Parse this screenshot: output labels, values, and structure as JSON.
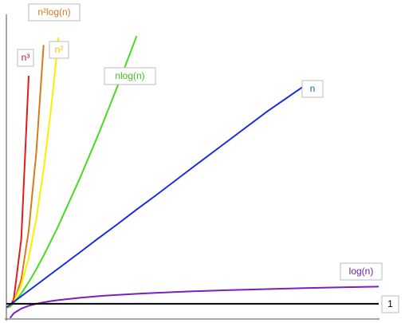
{
  "chart_data": {
    "type": "line",
    "x": [
      0,
      1,
      2,
      4,
      6,
      8,
      10,
      12,
      14,
      20,
      25,
      30,
      35,
      40,
      50,
      60,
      70,
      80,
      90,
      100
    ],
    "xlim": [
      0,
      100
    ],
    "ylim": [
      -3.1,
      80
    ],
    "series": [
      {
        "name": "n³",
        "color": "#e31b1b",
        "values": [
          0,
          0.29,
          2.3,
          18.4,
          62.2,
          null,
          null,
          null,
          null,
          null,
          null,
          null,
          null,
          null,
          null,
          null,
          null,
          null,
          null,
          null
        ]
      },
      {
        "name": "n²log(n)",
        "color": "#d97a1a",
        "values": [
          0,
          0.2,
          1.29,
          7.57,
          20.6,
          41.3,
          70.5,
          null,
          null,
          null,
          null,
          null,
          null,
          null,
          null,
          null,
          null,
          null,
          null,
          null
        ]
      },
      {
        "name": "n²",
        "color": "#ffee00",
        "values": [
          0,
          0.37,
          1.48,
          5.92,
          13.3,
          23.7,
          37,
          53.3,
          72.5,
          null,
          null,
          null,
          null,
          null,
          null,
          null,
          null,
          null,
          null,
          null
        ]
      },
      {
        "name": "nlog(n)",
        "color": "#44dd22",
        "values": [
          0,
          0.4,
          1.27,
          3.73,
          6.77,
          10.2,
          13.9,
          17.9,
          22.0,
          35.3,
          47.2,
          59.8,
          72.9,
          null,
          null,
          null,
          null,
          null,
          null,
          null
        ]
      },
      {
        "name": "n",
        "color": "#1a2ed6",
        "values": [
          0,
          0.75,
          1.5,
          3.0,
          4.5,
          6.0,
          7.5,
          9.0,
          10.5,
          15.0,
          18.8,
          22.5,
          26.3,
          30.0,
          37.6,
          45.1,
          52.6,
          59.5,
          null,
          null
        ]
      },
      {
        "name": "log(n)",
        "color": "#7a1fc2",
        "values": [
          null,
          -2.83,
          -1.56,
          -0.29,
          0.45,
          0.97,
          1.38,
          1.72,
          2.0,
          2.65,
          3.06,
          3.39,
          3.67,
          3.92,
          4.33,
          4.66,
          4.94,
          5.19,
          5.4,
          5.59
        ]
      },
      {
        "name": "1",
        "color": "#000000",
        "values": [
          1,
          1,
          1,
          1,
          1,
          1,
          1,
          1,
          1,
          1,
          1,
          1,
          1,
          1,
          1,
          1,
          1,
          1,
          1,
          1
        ]
      }
    ]
  }
}
